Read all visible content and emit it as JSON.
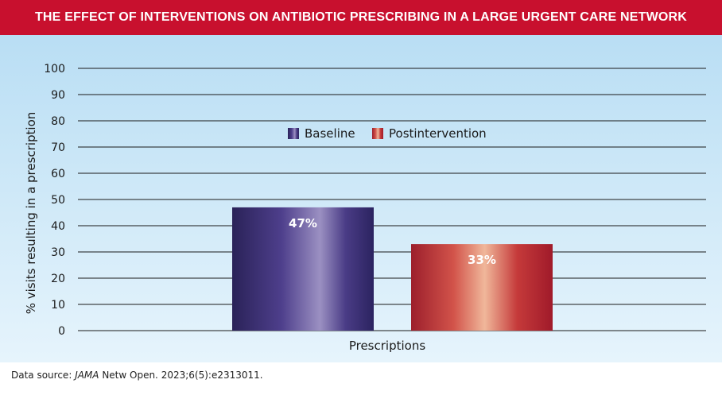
{
  "chart_data": {
    "type": "bar",
    "title": "THE EFFECT OF INTERVENTIONS ON ANTIBIOTIC PRESCRIBING IN A LARGE URGENT CARE NETWORK",
    "ylabel": "% visits resulting in a prescription",
    "categories": [
      "Prescriptions"
    ],
    "ylim": [
      0,
      100
    ],
    "yticks": [
      0,
      10,
      20,
      30,
      40,
      50,
      60,
      70,
      80,
      90,
      100
    ],
    "grid": true,
    "legend_position": "top-center",
    "series": [
      {
        "name": "Baseline",
        "values": [
          47
        ],
        "label": "47%",
        "color": "#4e3f8c"
      },
      {
        "name": "Postintervention",
        "values": [
          33
        ],
        "label": "33%",
        "color": "#c53a3a"
      }
    ]
  },
  "footer": {
    "prefix": "Data source: ",
    "journal": "JAMA",
    "citation": " Netw Open. 2023;6(5):e2313011."
  }
}
